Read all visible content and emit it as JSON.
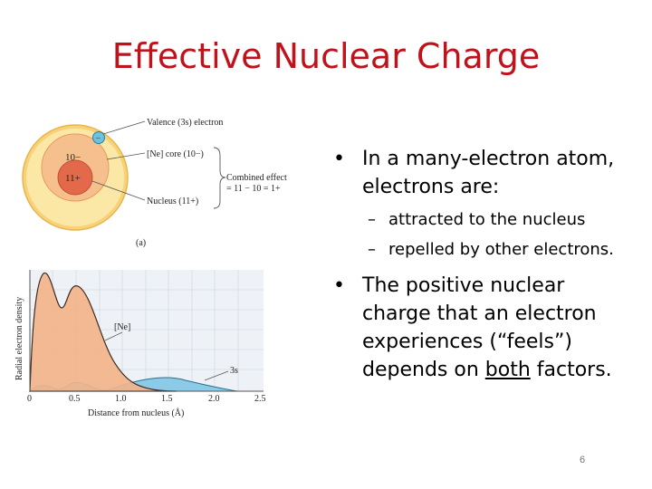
{
  "slide": {
    "title": "Effective Nuclear Charge",
    "page_number": "6"
  },
  "bullets": {
    "b1_line1": "In a many-electron atom,",
    "b1_line2": "electrons are:",
    "sub1": "attracted to the nucleus",
    "sub2": "repelled by other electrons.",
    "b2_line1": "The positive nuclear",
    "b2_line2": "charge that an electron",
    "b2_line3": "experiences (“feels”)",
    "b2_line4_pre": "depends on ",
    "b2_line4_ul": "both",
    "b2_line4_post": " factors.",
    "bullet_glyph": "•",
    "dash_glyph": "–"
  },
  "figure_a": {
    "label_valence": "Valence (3s) electron",
    "label_core": "[Ne] core (10−)",
    "label_nucleus": "Nucleus (11+)",
    "label_combined_1": "Combined effect",
    "label_combined_2": "= 11 − 10 = 1+",
    "core_charge": "10−",
    "nucleus_charge": "11+",
    "electron_symbol": "−",
    "panel_label": "(a)"
  },
  "figure_b": {
    "ylabel": "Radial electron density",
    "xlabel": "Distance from nucleus (Å)",
    "label_ne": "[Ne]",
    "label_3s": "3s",
    "ticks": [
      "0",
      "0.5",
      "1.0",
      "1.5",
      "2.0",
      "2.5"
    ]
  },
  "colors": {
    "title": "#c0121b",
    "ne_fill": "#f2b48a",
    "s3_fill": "#8ccbe8",
    "outer_ring": "#f7d27a",
    "core_ring": "#f4b07a",
    "nucleus": "#e26a4a",
    "electron": "#6fc2dd"
  }
}
